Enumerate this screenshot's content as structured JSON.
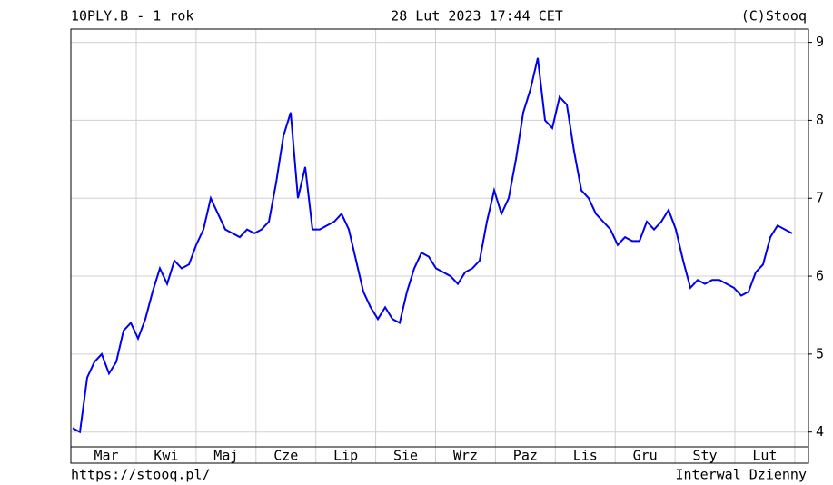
{
  "chart_data": {
    "type": "line",
    "title": "10PLY.B - 1 rok",
    "subtitle": "28 Lut 2023 17:44 CET",
    "credit": "(C)Stooq",
    "footer_left": "https://stooq.pl/",
    "footer_right": "Interwal Dzienny",
    "x_labels": [
      "Mar",
      "Kwi",
      "Maj",
      "Cze",
      "Lip",
      "Sie",
      "Wrz",
      "Paz",
      "Lis",
      "Gru",
      "Sty",
      "Lut"
    ],
    "values": [
      4.05,
      4.0,
      4.7,
      4.9,
      5.0,
      4.75,
      4.9,
      5.3,
      5.4,
      5.2,
      5.45,
      5.8,
      6.1,
      5.9,
      6.2,
      6.1,
      6.15,
      6.4,
      6.6,
      7.0,
      6.8,
      6.6,
      6.55,
      6.5,
      6.6,
      6.55,
      6.6,
      6.7,
      7.2,
      7.8,
      8.1,
      7.0,
      7.4,
      6.6,
      6.6,
      6.65,
      6.7,
      6.8,
      6.6,
      6.2,
      5.8,
      5.6,
      5.45,
      5.6,
      5.45,
      5.4,
      5.8,
      6.1,
      6.3,
      6.25,
      6.1,
      6.05,
      6.0,
      5.9,
      6.05,
      6.1,
      6.2,
      6.7,
      7.1,
      6.8,
      7.0,
      7.5,
      8.1,
      8.4,
      8.8,
      8.0,
      7.9,
      8.3,
      8.2,
      7.6,
      7.1,
      7.0,
      6.8,
      6.7,
      6.6,
      6.4,
      6.5,
      6.45,
      6.45,
      6.7,
      6.6,
      6.7,
      6.85,
      6.6,
      6.2,
      5.85,
      5.95,
      5.9,
      5.95,
      5.95,
      5.9,
      5.85,
      5.75,
      5.8,
      6.05,
      6.15,
      6.5,
      6.65,
      6.6,
      6.55
    ],
    "color": "#0000ee",
    "ylim": [
      3.81,
      9.17
    ],
    "yticks": [
      4,
      5,
      6,
      7,
      8,
      9
    ],
    "grid": true
  }
}
